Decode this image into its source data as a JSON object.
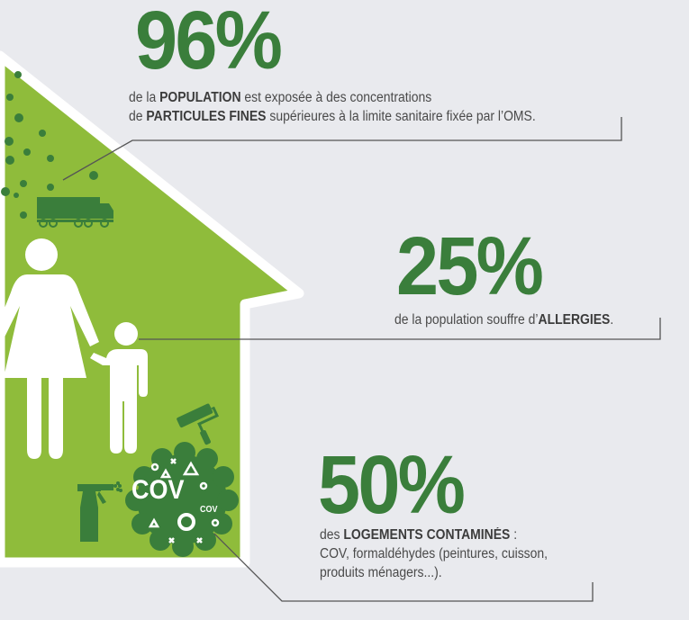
{
  "colors": {
    "dark_green": "#3a7e3b",
    "light_green": "#8fbc3b",
    "background": "#e9eaee",
    "text": "#4a4a4a"
  },
  "stats": [
    {
      "value": "96%",
      "line1_pre": "de la ",
      "line1_bold": "POPULATION",
      "line1_post": " est exposée à des concentrations",
      "line2_pre": "de ",
      "line2_bold": "PARTICULES FINES",
      "line2_post": " supérieures à la limite sanitaire fixée par l’OMS."
    },
    {
      "value": "25%",
      "line1_pre": "de la population souffre d’",
      "line1_bold": "ALLERGIES",
      "line1_post": "."
    },
    {
      "value": "50%",
      "line1_pre": "des ",
      "line1_bold": "LOGEMENTS CONTAMINÉS",
      "line1_post": " :",
      "line2": "COV, formaldéhydes (peintures, cuisson,",
      "line3": "produits ménagers...)."
    }
  ],
  "cov_badge": {
    "big": "COV",
    "small": "COV"
  },
  "icons": [
    "particles-icon",
    "truck-icon",
    "woman-icon",
    "child-icon",
    "paint-roller-icon",
    "spray-bottle-icon",
    "cov-cloud-icon"
  ]
}
